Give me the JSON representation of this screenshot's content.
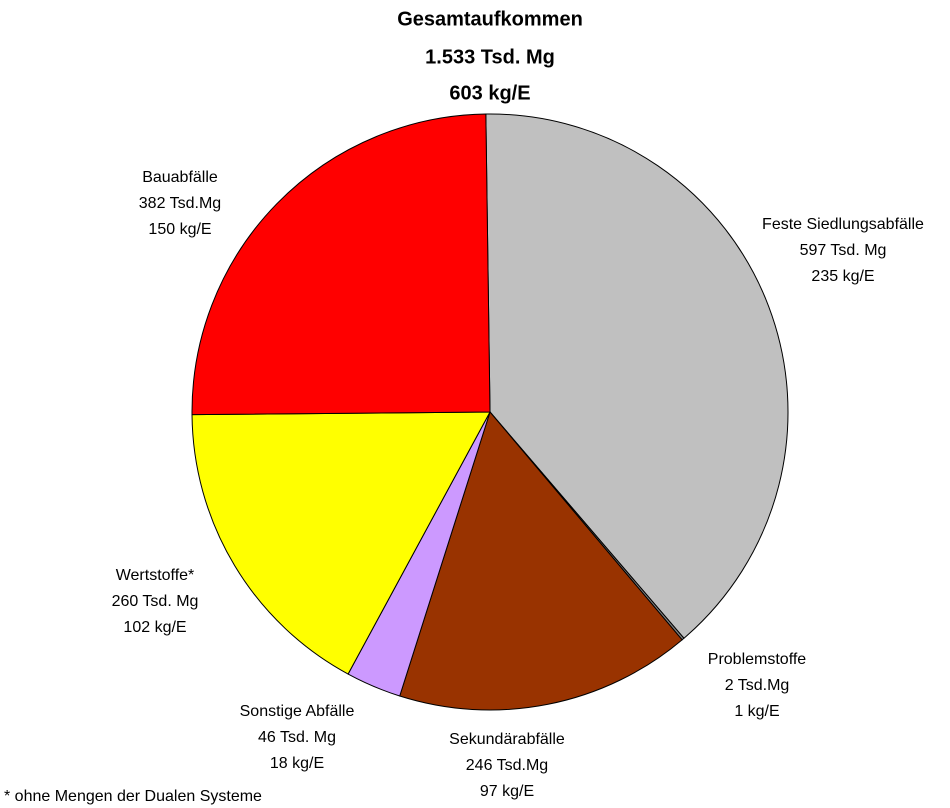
{
  "chart_data": {
    "type": "pie",
    "title": [
      "Gesamtaufkommen",
      "1.533 Tsd. Mg",
      "603 kg/E"
    ],
    "categories": [
      "Feste Siedlungsabfälle",
      "Problemstoffe",
      "Sekundärabfälle",
      "Sonstige Abfälle",
      "Wertstoffe*",
      "Bauabfälle"
    ],
    "values": [
      597,
      2,
      246,
      46,
      260,
      382
    ],
    "value_labels": [
      "597 Tsd. Mg",
      "2 Tsd.Mg",
      "246 Tsd.Mg",
      "46 Tsd. Mg",
      "260 Tsd. Mg",
      "382 Tsd.Mg"
    ],
    "per_capita": [
      235,
      1,
      97,
      18,
      102,
      150
    ],
    "per_capita_labels": [
      "235 kg/E",
      "1 kg/E",
      "97 kg/E",
      "18 kg/E",
      "102 kg/E",
      "150 kg/E"
    ],
    "colors": [
      "#c0c0c0",
      "#808080",
      "#993300",
      "#cc99ff",
      "#ffff00",
      "#ff0000"
    ],
    "footnote": "* ohne Mengen der Dualen Systeme"
  }
}
